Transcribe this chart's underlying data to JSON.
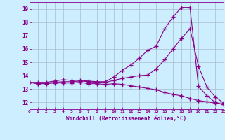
{
  "xlabel": "Windchill (Refroidissement éolien,°C)",
  "x_values": [
    0,
    1,
    2,
    3,
    4,
    5,
    6,
    7,
    8,
    9,
    10,
    11,
    12,
    13,
    14,
    15,
    16,
    17,
    18,
    19,
    20,
    21,
    22,
    23
  ],
  "line1_y": [
    13.5,
    13.5,
    13.5,
    13.6,
    13.7,
    13.65,
    13.65,
    13.6,
    13.55,
    13.55,
    13.9,
    14.4,
    14.8,
    15.3,
    15.9,
    16.2,
    17.5,
    18.4,
    19.1,
    19.1,
    13.2,
    12.5,
    12.0,
    11.85
  ],
  "line2_y": [
    13.5,
    13.4,
    13.45,
    13.5,
    13.55,
    13.55,
    13.6,
    13.55,
    13.5,
    13.5,
    13.65,
    13.8,
    13.9,
    14.0,
    14.05,
    14.5,
    15.2,
    16.0,
    16.8,
    17.5,
    14.7,
    13.15,
    12.4,
    11.95
  ],
  "line3_y": [
    13.5,
    13.4,
    13.4,
    13.45,
    13.45,
    13.45,
    13.5,
    13.4,
    13.4,
    13.35,
    13.4,
    13.35,
    13.25,
    13.15,
    13.05,
    12.95,
    12.75,
    12.6,
    12.5,
    12.3,
    12.15,
    12.05,
    11.95,
    11.85
  ],
  "line_color": "#880088",
  "bg_color": "#cceeff",
  "grid_color": "#aabbcc",
  "ylim": [
    11.5,
    19.5
  ],
  "yticks": [
    12,
    13,
    14,
    15,
    16,
    17,
    18,
    19
  ],
  "xlim": [
    0,
    23
  ],
  "xticks": [
    0,
    1,
    2,
    3,
    4,
    5,
    6,
    7,
    8,
    9,
    10,
    11,
    12,
    13,
    14,
    15,
    16,
    17,
    18,
    19,
    20,
    21,
    22,
    23
  ]
}
